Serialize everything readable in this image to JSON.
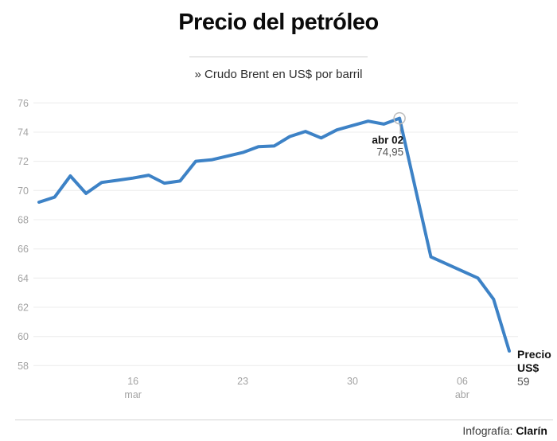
{
  "header": {
    "title": "Precio del petróleo",
    "subtitle": "» Crudo Brent en US$ por barril"
  },
  "footer": {
    "credit_label": "Infografía: ",
    "credit_name": "Clarín"
  },
  "chart_data": {
    "type": "line",
    "title": "Precio del petróleo",
    "subtitle": "Crudo Brent en US$ por barril",
    "ylabel": "US$ por barril",
    "xlabel": "",
    "ylim": [
      58,
      76
    ],
    "grid": true,
    "y_ticks": [
      76,
      74,
      72,
      70,
      68,
      66,
      64,
      62,
      60,
      58
    ],
    "x_ticks": [
      {
        "day_offset": 6,
        "line1": "16",
        "line2": "mar"
      },
      {
        "day_offset": 13,
        "line1": "23",
        "line2": ""
      },
      {
        "day_offset": 20,
        "line1": "30",
        "line2": ""
      },
      {
        "day_offset": 27,
        "line1": "06",
        "line2": "abr"
      }
    ],
    "series": [
      {
        "name": "Crudo Brent",
        "points": [
          {
            "d": 0,
            "v": 69.2
          },
          {
            "d": 1,
            "v": 69.55
          },
          {
            "d": 2,
            "v": 71.0
          },
          {
            "d": 3,
            "v": 69.8
          },
          {
            "d": 4,
            "v": 70.55
          },
          {
            "d": 5,
            "v": 70.7
          },
          {
            "d": 6,
            "v": 70.85
          },
          {
            "d": 7,
            "v": 71.05
          },
          {
            "d": 8,
            "v": 70.5
          },
          {
            "d": 9,
            "v": 70.65
          },
          {
            "d": 10,
            "v": 72.0
          },
          {
            "d": 11,
            "v": 72.1
          },
          {
            "d": 12,
            "v": 72.35
          },
          {
            "d": 13,
            "v": 72.6
          },
          {
            "d": 14,
            "v": 73.0
          },
          {
            "d": 15,
            "v": 73.05
          },
          {
            "d": 16,
            "v": 73.7
          },
          {
            "d": 17,
            "v": 74.05
          },
          {
            "d": 18,
            "v": 73.6
          },
          {
            "d": 19,
            "v": 74.15
          },
          {
            "d": 21,
            "v": 74.75
          },
          {
            "d": 22,
            "v": 74.55
          },
          {
            "d": 23,
            "v": 74.95
          },
          {
            "d": 25,
            "v": 65.45
          },
          {
            "d": 28,
            "v": 64.0
          },
          {
            "d": 29,
            "v": 62.55
          },
          {
            "d": 30,
            "v": 59.0
          }
        ]
      }
    ],
    "annotations": {
      "peak": {
        "label": "abr 02",
        "value_label": "74,95",
        "value": 74.95,
        "day_offset": 23
      },
      "end": {
        "label_line1": "Precio",
        "label_line2": "US$",
        "value_label": "59",
        "value": 59,
        "day_offset": 30
      }
    },
    "colors": {
      "line": "#3d82c6",
      "grid": "#ececec",
      "axis_label": "#a3a3a3",
      "marker_stroke": "#bdbdbd",
      "annotation_bold": "#141414",
      "annotation_value": "#555555"
    },
    "legend": "none"
  }
}
